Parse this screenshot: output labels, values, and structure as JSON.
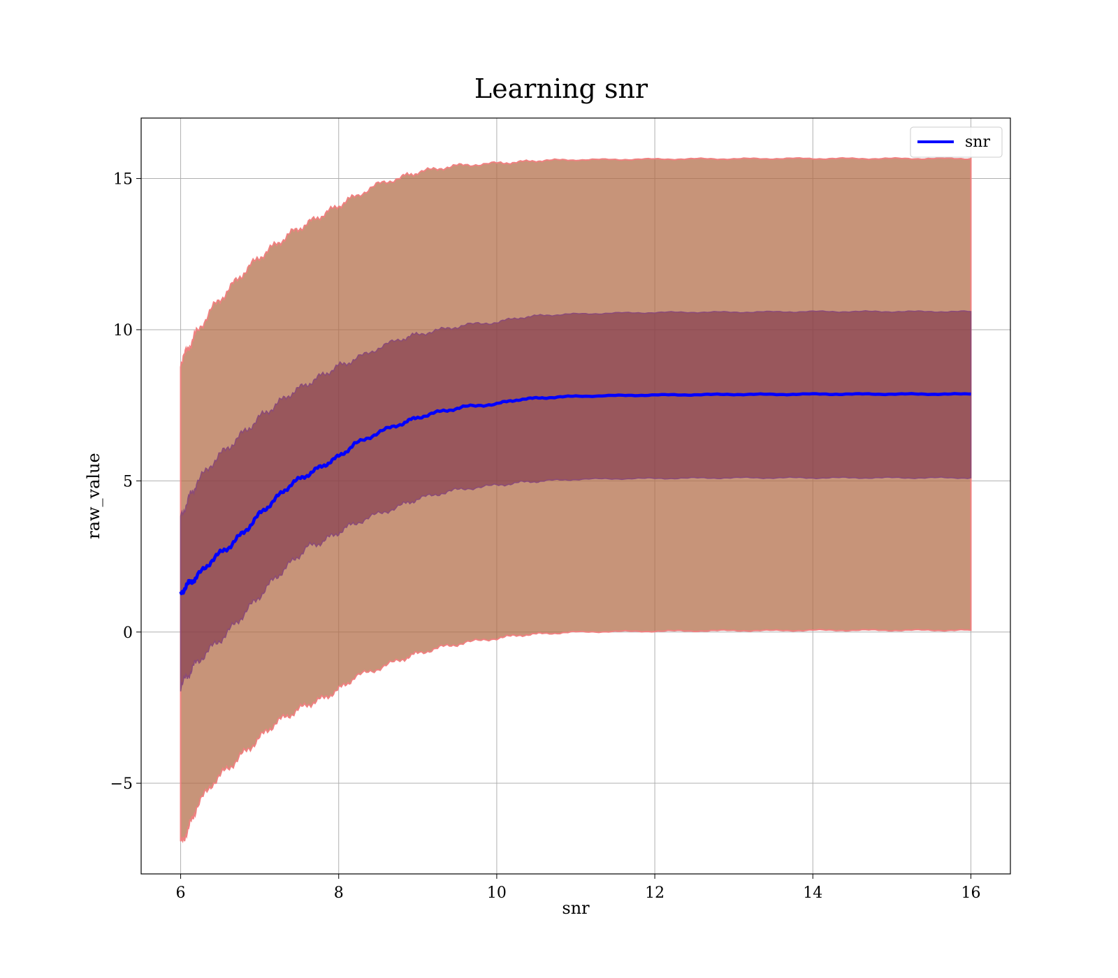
{
  "chart_data": {
    "type": "line",
    "title": "Learning snr",
    "xlabel": "snr",
    "ylabel": "raw_value",
    "xlim": [
      5.5,
      16.5
    ],
    "ylim": [
      -8,
      17
    ],
    "xticks": [
      6,
      8,
      10,
      12,
      14,
      16
    ],
    "yticks": [
      -5,
      0,
      5,
      10,
      15
    ],
    "ytick_labels": [
      "−5",
      "0",
      "5",
      "10",
      "15"
    ],
    "grid": true,
    "legend": {
      "placement": "top-right",
      "entries": [
        "snr"
      ]
    },
    "x": [
      6.0,
      6.1,
      6.2,
      6.4,
      6.6,
      6.8,
      7.0,
      7.2,
      7.4,
      7.6,
      7.8,
      8.0,
      8.2,
      8.5,
      8.8,
      9.0,
      9.3,
      9.6,
      10.0,
      10.3,
      10.6,
      11.0,
      11.5,
      12.0,
      12.5,
      13.0,
      13.5,
      14.0,
      14.5,
      15.0,
      15.5,
      16.0
    ],
    "series": [
      {
        "name": "snr",
        "color": "#0000ff",
        "values": [
          1.3,
          1.6,
          1.8,
          2.4,
          2.8,
          3.3,
          3.9,
          4.4,
          4.9,
          5.2,
          5.5,
          5.8,
          6.2,
          6.6,
          6.9,
          7.1,
          7.3,
          7.45,
          7.55,
          7.7,
          7.75,
          7.8,
          7.82,
          7.84,
          7.85,
          7.86,
          7.86,
          7.87,
          7.87,
          7.87,
          7.87,
          7.87
        ],
        "inner_band": {
          "color": "#7a2f4a",
          "lower": [
            -1.8,
            -1.4,
            -1.0,
            -0.5,
            0.0,
            0.6,
            1.2,
            1.8,
            2.3,
            2.8,
            3.0,
            3.3,
            3.6,
            3.9,
            4.2,
            4.4,
            4.6,
            4.75,
            4.85,
            4.95,
            5.0,
            5.05,
            5.07,
            5.08,
            5.09,
            5.1,
            5.1,
            5.1,
            5.1,
            5.1,
            5.1,
            5.1
          ],
          "upper": [
            3.8,
            4.4,
            4.9,
            5.6,
            6.1,
            6.6,
            7.1,
            7.5,
            7.9,
            8.2,
            8.5,
            8.8,
            9.0,
            9.4,
            9.7,
            9.85,
            10.0,
            10.15,
            10.25,
            10.4,
            10.48,
            10.52,
            10.55,
            10.57,
            10.58,
            10.58,
            10.59,
            10.6,
            10.6,
            10.6,
            10.6,
            10.6
          ]
        },
        "outer_band": {
          "color": "#b26b45",
          "lower": [
            -7.0,
            -6.5,
            -5.8,
            -5.0,
            -4.5,
            -4.0,
            -3.5,
            -3.0,
            -2.7,
            -2.4,
            -2.2,
            -1.9,
            -1.5,
            -1.2,
            -0.9,
            -0.7,
            -0.5,
            -0.35,
            -0.2,
            -0.1,
            -0.05,
            0.0,
            0.02,
            0.03,
            0.04,
            0.05,
            0.05,
            0.06,
            0.06,
            0.06,
            0.06,
            0.06
          ],
          "upper": [
            8.9,
            9.4,
            9.9,
            10.7,
            11.3,
            11.9,
            12.4,
            12.8,
            13.2,
            13.5,
            13.8,
            14.1,
            14.4,
            14.8,
            15.05,
            15.2,
            15.35,
            15.45,
            15.5,
            15.55,
            15.6,
            15.62,
            15.63,
            15.64,
            15.65,
            15.65,
            15.66,
            15.66,
            15.66,
            15.66,
            15.66,
            15.66
          ]
        }
      }
    ]
  }
}
